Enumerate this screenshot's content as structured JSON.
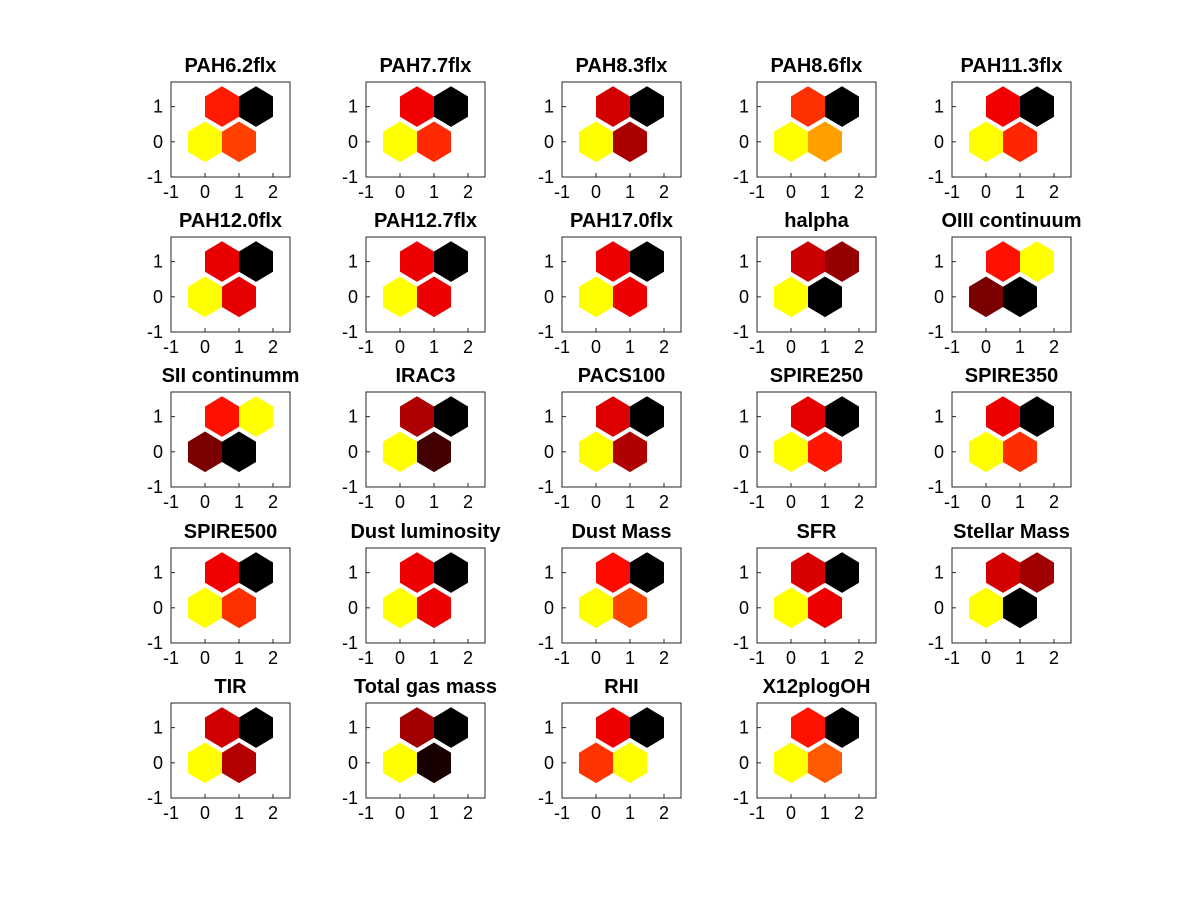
{
  "chart_data": {
    "type": "heatmap",
    "layout": "5 x 5 grid of small multiples",
    "cell_shape": "hexagon",
    "hex_centers": [
      [
        0,
        0
      ],
      [
        1,
        0
      ],
      [
        0.5,
        1
      ],
      [
        1.5,
        1
      ]
    ],
    "xlim": [
      -1,
      2.5
    ],
    "ylim": [
      -1,
      1.7
    ],
    "xticks": [
      "-1",
      "0",
      "1",
      "2"
    ],
    "yticks": [
      "-1",
      "0",
      "1"
    ],
    "grid": false,
    "panels": [
      {
        "title": "PAH6.2flx",
        "colors": [
          "#ffff00",
          "#ff4000",
          "#ff1a00",
          "#000000"
        ]
      },
      {
        "title": "PAH7.7flx",
        "colors": [
          "#ffff00",
          "#ff2a00",
          "#f00000",
          "#000000"
        ]
      },
      {
        "title": "PAH8.3flx",
        "colors": [
          "#ffff00",
          "#aa0000",
          "#d40000",
          "#000000"
        ]
      },
      {
        "title": "PAH8.6flx",
        "colors": [
          "#ffff00",
          "#ffa000",
          "#ff3000",
          "#000000"
        ]
      },
      {
        "title": "PAH11.3flx",
        "colors": [
          "#ffff00",
          "#ff2600",
          "#f40000",
          "#000000"
        ]
      },
      {
        "title": "PAH12.0flx",
        "colors": [
          "#ffff00",
          "#e60000",
          "#e80000",
          "#000000"
        ]
      },
      {
        "title": "PAH12.7flx",
        "colors": [
          "#ffff00",
          "#ee0000",
          "#ec0000",
          "#000000"
        ]
      },
      {
        "title": "PAH17.0flx",
        "colors": [
          "#ffff00",
          "#ee0000",
          "#ec0000",
          "#000000"
        ]
      },
      {
        "title": "halpha",
        "colors": [
          "#ffff00",
          "#000000",
          "#c80000",
          "#960000"
        ]
      },
      {
        "title": "OIII continuum",
        "colors": [
          "#7a0000",
          "#000000",
          "#ff1000",
          "#ffff00"
        ]
      },
      {
        "title": "SII continumm",
        "colors": [
          "#7a0000",
          "#000000",
          "#ff1000",
          "#ffff00"
        ]
      },
      {
        "title": "IRAC3",
        "colors": [
          "#ffff00",
          "#420000",
          "#ae0000",
          "#000000"
        ]
      },
      {
        "title": "PACS100",
        "colors": [
          "#ffff00",
          "#b00000",
          "#dc0000",
          "#000000"
        ]
      },
      {
        "title": "SPIRE250",
        "colors": [
          "#ffff00",
          "#ff1600",
          "#e40000",
          "#000000"
        ]
      },
      {
        "title": "SPIRE350",
        "colors": [
          "#ffff00",
          "#ff2e00",
          "#ee0000",
          "#000000"
        ]
      },
      {
        "title": "SPIRE500",
        "colors": [
          "#ffff00",
          "#ff3000",
          "#f00000",
          "#000000"
        ]
      },
      {
        "title": "Dust luminosity",
        "colors": [
          "#ffff00",
          "#ee0000",
          "#ec0000",
          "#000000"
        ]
      },
      {
        "title": "Dust Mass",
        "colors": [
          "#ffff00",
          "#ff4600",
          "#ff0a00",
          "#000000"
        ]
      },
      {
        "title": "SFR",
        "colors": [
          "#ffff00",
          "#ee0000",
          "#d80000",
          "#000000"
        ]
      },
      {
        "title": "Stellar Mass",
        "colors": [
          "#ffff00",
          "#000000",
          "#d40000",
          "#a00000"
        ]
      },
      {
        "title": "TIR",
        "colors": [
          "#ffff00",
          "#b40000",
          "#d00000",
          "#000000"
        ]
      },
      {
        "title": "Total gas mass",
        "colors": [
          "#ffff00",
          "#180000",
          "#a00000",
          "#000000"
        ]
      },
      {
        "title": "RHI",
        "colors": [
          "#ff3400",
          "#ffff00",
          "#ee0000",
          "#000000"
        ]
      },
      {
        "title": "X12plogOH",
        "colors": [
          "#ffff00",
          "#ff5a00",
          "#ff1200",
          "#000000"
        ]
      }
    ]
  }
}
